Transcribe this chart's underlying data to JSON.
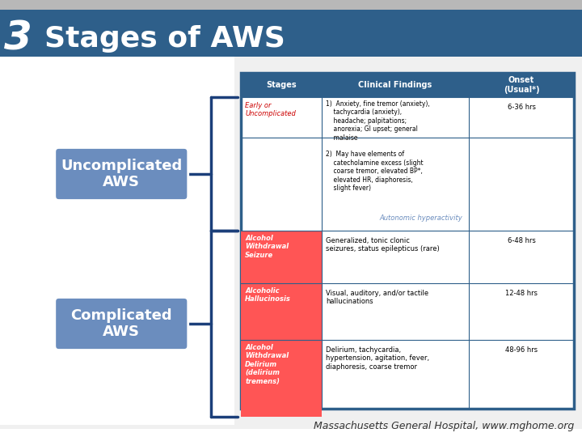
{
  "title_number": "3",
  "title_text": "Stages of AWS",
  "title_bg": "#2E5F8A",
  "title_top_bar": "#B8B8B8",
  "bg_color": "#FFFFFF",
  "box1_label": "Uncomplicated\nAWS",
  "box2_label": "Complicated\nAWS",
  "box_color": "#6B8DBE",
  "box_text_color": "#FFFFFF",
  "bracket_color": "#1B3F7A",
  "footer_text": "Massachusetts General Hospital, www.mghome.org",
  "table_header_bg": "#2E5F8A",
  "table_header_color": "#FFFFFF",
  "table_highlight_bg": "#FF5555",
  "annotation_text": "Autonomic hyperactivity",
  "annotation_color": "#6B8DBE"
}
